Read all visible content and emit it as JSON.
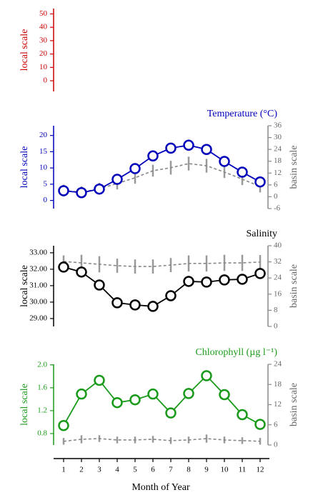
{
  "chart_data": [
    {
      "type": "line",
      "ylabel": "local scale",
      "color": "#cc0000",
      "ylim": [
        -8,
        54
      ],
      "yticks": [
        0,
        10,
        20,
        30,
        40,
        50
      ]
    },
    {
      "type": "line",
      "title": "Temperature (°C)",
      "ylabel": "local scale",
      "color": "#0000bb",
      "ylim": [
        -2.5,
        23
      ],
      "yticks": [
        0,
        5,
        10,
        15,
        20
      ],
      "y2label": "basin scale",
      "y2lim": [
        -6,
        36
      ],
      "y2ticks": [
        -6,
        0,
        6,
        12,
        18,
        24,
        30,
        36
      ],
      "x": [
        1,
        2,
        3,
        4,
        5,
        6,
        7,
        8,
        9,
        10,
        11,
        12
      ],
      "series": [
        {
          "color": "#888888",
          "axis": "y2",
          "linestyle": "dashed",
          "values": [
            3.1,
            2.3,
            4.1,
            6.7,
            9.6,
            13.2,
            14.7,
            16.8,
            15.7,
            12.5,
            8.9,
            5.2
          ],
          "error": [
            3,
            3,
            3,
            3,
            3,
            3,
            3.5,
            3.5,
            3.5,
            3,
            3,
            3
          ]
        },
        {
          "color": "#0000bb",
          "values": [
            3.0,
            2.4,
            3.5,
            6.5,
            9.8,
            13.7,
            16.1,
            17.0,
            15.7,
            12.0,
            8.7,
            5.7
          ]
        }
      ]
    },
    {
      "type": "line",
      "title": "Salinity",
      "ylabel": "local scale",
      "color": "#000000",
      "ylim": [
        28.52,
        33.43
      ],
      "yticks": [
        {
          "value": 29,
          "label": "29.00"
        },
        {
          "value": 30,
          "label": "30.00"
        },
        {
          "value": 31,
          "label": "31.00"
        },
        {
          "value": 32,
          "label": "32.00"
        },
        {
          "value": 33,
          "label": "33.00"
        }
      ],
      "y2label": "basin scale",
      "y2lim": [
        0,
        40
      ],
      "y2ticks": [
        0,
        8,
        16,
        24,
        32,
        40
      ],
      "x": [
        1,
        2,
        3,
        4,
        5,
        6,
        7,
        8,
        9,
        10,
        11,
        12
      ],
      "series": [
        {
          "color": "#888888",
          "axis": "y2",
          "linestyle": "dashed",
          "values": [
            32.2,
            31.5,
            30.8,
            30.1,
            29.7,
            29.7,
            30.4,
            31.2,
            31.2,
            31.5,
            31.5,
            31.9
          ],
          "error": [
            3,
            4,
            4,
            3.5,
            3.5,
            3.5,
            3.5,
            4,
            4,
            4,
            4,
            3.5
          ]
        },
        {
          "color": "#000000",
          "values": [
            32.13,
            31.83,
            31.04,
            29.96,
            29.83,
            29.74,
            30.39,
            31.26,
            31.22,
            31.35,
            31.39,
            31.74
          ]
        }
      ]
    },
    {
      "type": "line",
      "title": "Chlorophyll (µg l⁻¹)",
      "ylabel": "local scale",
      "color": "#1a9a1a",
      "ylim": [
        0.6,
        2.01
      ],
      "yticks": [
        0.8,
        1.2,
        1.6,
        {
          "value": 2,
          "label": "2.0"
        }
      ],
      "y2label": "basin scale",
      "y2lim": [
        0,
        24
      ],
      "y2ticks": [
        0,
        6,
        12,
        18,
        24
      ],
      "x": [
        1,
        2,
        3,
        4,
        5,
        6,
        7,
        8,
        9,
        10,
        11,
        12
      ],
      "series": [
        {
          "color": "#888888",
          "axis": "y2",
          "linestyle": "dashed",
          "values": [
            1.1,
            1.7,
            1.9,
            1.5,
            1.5,
            1.7,
            1.3,
            1.5,
            1.9,
            1.5,
            1.3,
            1.1
          ],
          "error": [
            1,
            1.2,
            1,
            1,
            1,
            1,
            1,
            1,
            1.2,
            1,
            1,
            1
          ]
        },
        {
          "color": "#1a9a1a",
          "values": [
            0.94,
            1.49,
            1.73,
            1.34,
            1.39,
            1.49,
            1.16,
            1.5,
            1.81,
            1.48,
            1.13,
            0.96
          ]
        }
      ],
      "xlabel": "Month of Year",
      "xlim": [
        0.44,
        12.44
      ],
      "xticks": [
        1,
        2,
        3,
        4,
        5,
        6,
        7,
        8,
        9,
        10,
        11,
        12
      ]
    }
  ]
}
